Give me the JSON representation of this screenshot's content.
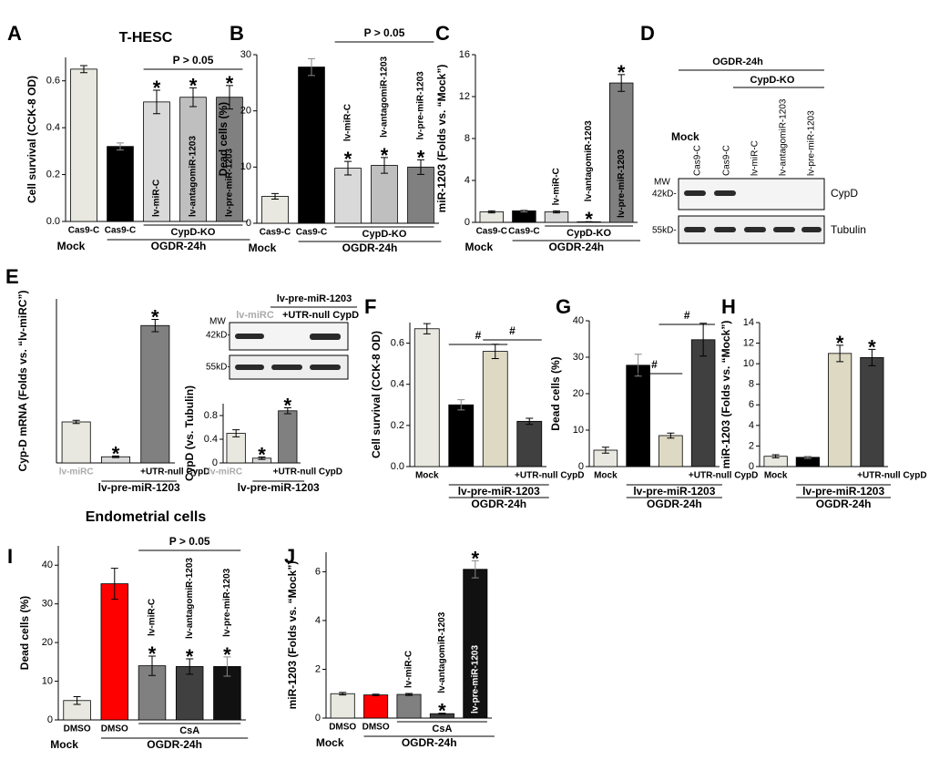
{
  "chart_data": [
    {
      "panel": "A",
      "type": "bar",
      "title": "T-HESC",
      "ylabel": "Cell survival (CCK-8 OD)",
      "categories": [
        "Cas9-C",
        "Cas9-C",
        null,
        null,
        null
      ],
      "values": [
        0.65,
        0.32,
        0.51,
        0.53,
        0.53
      ],
      "errors": [
        0.015,
        0.015,
        0.05,
        0.04,
        0.05
      ],
      "colors": [
        "#e8e8e0",
        "#000000",
        "#d9d9d9",
        "#bfbfbf",
        "#808080"
      ],
      "bar_labels": [
        null,
        null,
        "lv-miR-C",
        "lv-antagomiR-1203",
        "lv-pre-miR-1203"
      ],
      "stars": [
        null,
        null,
        "*",
        "*",
        "*"
      ],
      "groups": [
        "CypD-KO",
        "OGDR-24h",
        "Mock"
      ],
      "annotations": [
        "P > 0.05"
      ],
      "ylim": [
        0,
        0.7
      ],
      "yticks": [
        {
          "value": 0,
          "label": "0.0"
        },
        0.2,
        0.4,
        0.6
      ]
    },
    {
      "panel": "B",
      "type": "bar",
      "ylabel": "Dead cells (%)",
      "categories": [
        "Cas9-C",
        "Cas9-C",
        null,
        null,
        null
      ],
      "values": [
        4.8,
        27.8,
        9.8,
        10.3,
        10.0
      ],
      "errors": [
        0.5,
        1.5,
        1.2,
        1.4,
        1.3
      ],
      "colors": [
        "#e8e8e0",
        "#000000",
        "#d9d9d9",
        "#bfbfbf",
        "#808080"
      ],
      "bar_labels": [
        null,
        null,
        "lv-miR-C",
        "lv-antagomiR-1203",
        "lv-pre-miR-1203"
      ],
      "stars": [
        null,
        null,
        "*",
        "*",
        "*"
      ],
      "groups": [
        "CypD-KO",
        "OGDR-24h",
        "Mock"
      ],
      "annotations": [
        "P > 0.05"
      ],
      "ylim": [
        0,
        30
      ],
      "yticks": [
        0,
        10,
        20,
        30
      ]
    },
    {
      "panel": "C",
      "type": "bar",
      "ylabel": "miR-1203 (Folds vs. “Mock”)",
      "categories": [
        "Cas9-C",
        "Cas9-C",
        null,
        null,
        null
      ],
      "values": [
        1.0,
        1.1,
        1.0,
        0.05,
        13.3
      ],
      "errors": [
        0.1,
        0.1,
        0.1,
        0.02,
        0.8
      ],
      "colors": [
        "#e8e8e0",
        "#000000",
        "#d9d9d9",
        "#bfbfbf",
        "#808080"
      ],
      "bar_labels": [
        null,
        null,
        "lv-miR-C",
        "lv-antagomiR-1203",
        "lv-pre-miR-1203"
      ],
      "stars": [
        null,
        null,
        null,
        "*",
        "*"
      ],
      "groups": [
        "CypD-KO",
        "OGDR-24h",
        "Mock"
      ],
      "ylim": [
        0,
        16
      ],
      "yticks": [
        0,
        4,
        8,
        12,
        16
      ]
    },
    {
      "panel": "E",
      "type": "bar",
      "ylabel": "Cyp-D mRNA (Folds vs. “lv-miRC”)",
      "categories": [
        "lv-miRC",
        null,
        "+UTR-null CypD"
      ],
      "values": [
        1.0,
        0.15,
        3.35
      ],
      "errors": [
        0.04,
        0.02,
        0.15
      ],
      "colors": [
        "#e8e8e0",
        "#d9d9d9",
        "#808080"
      ],
      "stars": [
        null,
        "*",
        "*"
      ],
      "groups": [
        "lv-pre-miR-1203"
      ],
      "ylim": [
        0,
        4
      ]
    },
    {
      "type": "bar",
      "ylabel": "CypD (vs. Tubulin)",
      "categories": [
        "lv-miRC",
        null,
        "+UTR-null CypD"
      ],
      "values": [
        0.5,
        0.08,
        0.88
      ],
      "errors": [
        0.06,
        0.02,
        0.05
      ],
      "colors": [
        "#e8e8e0",
        "#d9d9d9",
        "#808080"
      ],
      "stars": [
        null,
        "*",
        "*"
      ],
      "groups": [
        "lv-pre-miR-1203"
      ],
      "ylim": [
        0,
        1
      ],
      "yticks": [
        0,
        0.4,
        0.8
      ]
    },
    {
      "panel": "F",
      "type": "bar",
      "ylabel": "Cell survival (CCK-8 OD)",
      "categories": [
        "Mock",
        null,
        null,
        "+UTR-null CypD"
      ],
      "values": [
        0.67,
        0.3,
        0.56,
        0.22
      ],
      "errors": [
        0.025,
        0.025,
        0.035,
        0.015
      ],
      "colors": [
        "#e8e8e0",
        "#000000",
        "#ddd9c3",
        "#404040"
      ],
      "groups": [
        "lv-pre-miR-1203",
        "OGDR-24h"
      ],
      "annotations": [
        "#",
        "#"
      ],
      "ylim": [
        0,
        0.7
      ],
      "yticks": [
        {
          "value": 0,
          "label": "0.0"
        },
        0.2,
        0.4,
        0.6
      ]
    },
    {
      "panel": "G",
      "type": "bar",
      "ylabel": "Dead cells (%)",
      "categories": [
        "Mock",
        null,
        null,
        "+UTR-null CypD"
      ],
      "values": [
        4.5,
        27.8,
        8.5,
        34.8
      ],
      "errors": [
        0.8,
        3,
        0.7,
        4.5
      ],
      "colors": [
        "#e8e8e0",
        "#000000",
        "#ddd9c3",
        "#404040"
      ],
      "groups": [
        "lv-pre-miR-1203",
        "OGDR-24h"
      ],
      "annotations": [
        "#",
        "#"
      ],
      "ylim": [
        0,
        40
      ],
      "yticks": [
        0,
        10,
        20,
        30,
        40
      ]
    },
    {
      "panel": "H",
      "type": "bar",
      "ylabel": "miR-1203 (Folds vs. “Mock”)",
      "categories": [
        "Mock",
        null,
        null,
        "+UTR-null CypD"
      ],
      "values": [
        1.0,
        0.9,
        11.0,
        10.6
      ],
      "errors": [
        0.15,
        0.1,
        0.8,
        0.8
      ],
      "colors": [
        "#e8e8e0",
        "#000000",
        "#ddd9c3",
        "#404040"
      ],
      "stars": [
        null,
        null,
        "*",
        "*"
      ],
      "groups": [
        "lv-pre-miR-1203",
        "OGDR-24h"
      ],
      "ylim": [
        0,
        14
      ],
      "yticks": [
        0,
        2,
        4,
        6,
        8,
        10,
        12,
        14
      ]
    },
    {
      "panel": "I",
      "type": "bar",
      "title": "Endometrial cells",
      "ylabel": "Dead cells (%)",
      "categories": [
        "DMSO",
        "DMSO",
        null,
        null,
        null
      ],
      "values": [
        5,
        35.2,
        14,
        13.8,
        13.8
      ],
      "errors": [
        1,
        4,
        2.5,
        2,
        2.5
      ],
      "colors": [
        "#e8e8e0",
        "#ff0000",
        "#808080",
        "#404040",
        "#111111"
      ],
      "bar_labels": [
        null,
        null,
        "lv-miR-C",
        "lv-antagomiR-1203",
        "lv-pre-miR-1203"
      ],
      "stars": [
        null,
        null,
        "*",
        "*",
        "*"
      ],
      "groups": [
        "CsA",
        "OGDR-24h",
        "Mock"
      ],
      "annotations": [
        "P > 0.05"
      ],
      "ylim": [
        0,
        45
      ],
      "yticks": [
        0,
        10,
        20,
        30,
        40
      ]
    },
    {
      "panel": "J",
      "type": "bar",
      "ylabel": "miR-1203 (Folds vs. “Mock”)",
      "categories": [
        "DMSO",
        "DMSO",
        null,
        null,
        null
      ],
      "values": [
        1.0,
        0.95,
        0.97,
        0.18,
        6.1
      ],
      "errors": [
        0.05,
        0.03,
        0.04,
        0.02,
        0.35
      ],
      "colors": [
        "#e8e8e0",
        "#ff0000",
        "#808080",
        "#404040",
        "#111111"
      ],
      "bar_labels": [
        null,
        null,
        "lv-miR-C",
        "lv-antagomiR-1203",
        "lv-pre-miR-1203"
      ],
      "stars": [
        null,
        null,
        null,
        "*",
        "*"
      ],
      "groups": [
        "CsA",
        "OGDR-24h",
        "Mock"
      ],
      "ylim": [
        0,
        6.8
      ],
      "yticks": [
        0,
        2,
        4,
        6
      ]
    }
  ],
  "blots": {
    "D": {
      "panel": "D",
      "treatment": "OGDR-24h",
      "group": "CypD-KO",
      "mock": "Mock",
      "mw": "MW",
      "lanes": [
        "Cas9-C",
        "Cas9-C",
        "lv-miR-C",
        "lv-antagomiR-1203",
        "lv-pre-miR-1203"
      ],
      "markers": [
        "42kD-",
        "55kD-"
      ],
      "proteins": [
        "CypD",
        "Tubulin"
      ]
    },
    "E": {
      "group": "lv-pre-miR-1203",
      "mw": "MW",
      "lanes": [
        "lv-miRC",
        "+UTR-null CypD"
      ],
      "markers": [
        "42kD-",
        "55kD-"
      ]
    }
  }
}
